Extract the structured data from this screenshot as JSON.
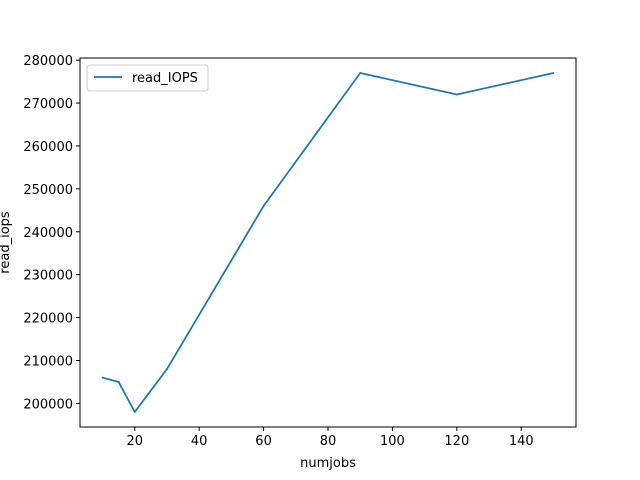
{
  "chart_data": {
    "type": "line",
    "xlabel": "numjobs",
    "ylabel": "read_iops",
    "xlim": [
      3,
      157
    ],
    "ylim": [
      194500,
      280500
    ],
    "xticks": [
      20,
      40,
      60,
      80,
      100,
      120,
      140
    ],
    "yticks": [
      200000,
      210000,
      220000,
      230000,
      240000,
      250000,
      260000,
      270000,
      280000
    ],
    "grid": false,
    "legend_position": "upper left",
    "series": [
      {
        "name": "read_IOPS",
        "color": "#1f77b4",
        "x": [
          10,
          15,
          20,
          30,
          60,
          90,
          120,
          150
        ],
        "y": [
          206000,
          205000,
          198000,
          208000,
          246000,
          277000,
          272000,
          277000
        ]
      }
    ]
  }
}
